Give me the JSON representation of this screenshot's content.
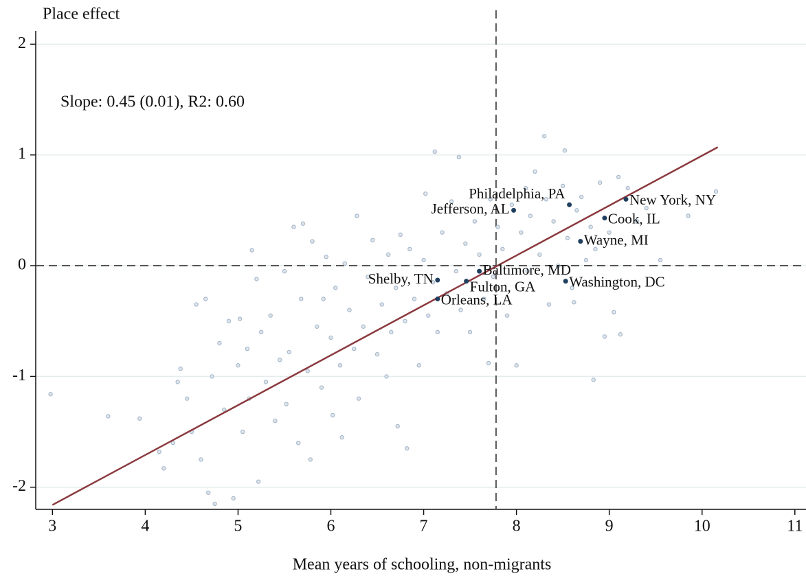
{
  "chart_data": {
    "type": "scatter",
    "y_label": "Place effect",
    "x_label": "Mean years of schooling, non-migrants",
    "annotation": "Slope: 0.45 (0.01), R2: 0.60",
    "xlim": [
      2.82,
      11.12
    ],
    "ylim": [
      -2.2,
      2.12
    ],
    "xticks": [
      3,
      4,
      5,
      6,
      7,
      8,
      9,
      10,
      11
    ],
    "yticks": [
      -2,
      -1,
      0,
      1,
      2
    ],
    "grid": true,
    "xline": 7.78,
    "yline": 0,
    "fit_line": {
      "color": "#8b3a3f",
      "x": [
        3,
        10.17
      ],
      "y": [
        -2.16,
        1.07
      ]
    },
    "series": [
      {
        "color": "#a8b8c8",
        "x": [
          2.98,
          3.6,
          3.94,
          4.15,
          4.2,
          4.3,
          4.35,
          4.38,
          4.45,
          4.5,
          4.55,
          4.6,
          4.65,
          4.68,
          4.72,
          4.75,
          4.8,
          4.85,
          4.9,
          4.95,
          5.0,
          5.02,
          5.05,
          5.1,
          5.12,
          5.15,
          5.2,
          5.22,
          5.25,
          5.3,
          5.35,
          5.4,
          5.45,
          5.5,
          5.52,
          5.55,
          5.6,
          5.65,
          5.68,
          5.7,
          5.75,
          5.78,
          5.8,
          5.85,
          5.9,
          5.92,
          5.95,
          6.0,
          6.02,
          6.05,
          6.1,
          6.12,
          6.15,
          6.2,
          6.25,
          6.28,
          6.3,
          6.35,
          6.4,
          6.45,
          6.5,
          6.55,
          6.6,
          6.62,
          6.65,
          6.7,
          6.72,
          6.75,
          6.8,
          6.82,
          6.85,
          6.9,
          6.95,
          7.0,
          7.02,
          7.05,
          7.1,
          7.12,
          7.15,
          7.2,
          7.25,
          7.3,
          7.35,
          7.38,
          7.4,
          7.45,
          7.5,
          7.55,
          7.6,
          7.65,
          7.7,
          7.72,
          7.75,
          7.8,
          7.85,
          7.9,
          7.95,
          8.0,
          8.05,
          8.1,
          8.12,
          8.15,
          8.2,
          8.25,
          8.3,
          8.32,
          8.35,
          8.4,
          8.45,
          8.5,
          8.52,
          8.55,
          8.6,
          8.62,
          8.65,
          8.7,
          8.75,
          8.8,
          8.83,
          8.85,
          8.9,
          8.95,
          9.0,
          9.05,
          9.1,
          9.12,
          9.2,
          9.3,
          9.4,
          9.55,
          10.15,
          9.85
        ],
        "values": [
          -1.16,
          -1.36,
          -1.38,
          -1.68,
          -1.83,
          -1.6,
          -1.05,
          -0.93,
          -1.2,
          -1.5,
          -0.35,
          -1.75,
          -0.3,
          -2.05,
          -1.0,
          -2.15,
          -0.7,
          -1.3,
          -0.5,
          -2.1,
          -0.9,
          -0.48,
          -1.5,
          -0.75,
          -1.2,
          0.14,
          -0.12,
          -1.95,
          -0.6,
          -1.05,
          -0.45,
          -1.4,
          -0.85,
          -0.05,
          -1.25,
          -0.78,
          0.35,
          -1.6,
          -0.3,
          0.38,
          -0.95,
          -1.75,
          0.22,
          -0.55,
          -1.1,
          -0.3,
          0.08,
          -0.65,
          -1.35,
          -0.2,
          -0.9,
          -1.55,
          0.02,
          -0.4,
          -0.75,
          0.45,
          -1.2,
          -0.55,
          -0.1,
          0.23,
          -0.8,
          -0.35,
          -1.0,
          0.1,
          -0.6,
          -0.2,
          -1.45,
          0.28,
          -0.5,
          -1.65,
          0.15,
          -0.3,
          -0.9,
          0.05,
          0.65,
          -0.45,
          -0.15,
          1.03,
          -0.6,
          0.3,
          -0.25,
          0.58,
          -0.05,
          0.98,
          -0.4,
          0.2,
          -0.6,
          0.4,
          0.1,
          -0.3,
          -0.88,
          0.6,
          -0.1,
          0.35,
          0.15,
          -0.45,
          0.55,
          -0.9,
          0.3,
          0.7,
          -0.05,
          0.45,
          0.85,
          0.1,
          1.17,
          0.6,
          -0.35,
          0.4,
          0.0,
          0.72,
          1.04,
          0.25,
          -0.2,
          -0.33,
          0.5,
          0.62,
          0.05,
          0.35,
          -1.03,
          0.15,
          0.75,
          -0.64,
          0.3,
          -0.42,
          0.8,
          -0.62,
          0.7,
          0.4,
          0.52,
          0.05,
          0.67,
          0.45
        ]
      },
      {
        "color": "#1f3f5f",
        "labels": [
          "Philadelphia, PA",
          "Jefferson, AL",
          "New York, NY",
          "Cook, IL",
          "Wayne, MI",
          "Baltimore, MD",
          "Washington, DC",
          "Shelby, TN",
          "Fulton, GA",
          "Orleans, LA"
        ],
        "x": [
          8.57,
          7.97,
          9.18,
          8.95,
          8.69,
          7.6,
          8.53,
          7.15,
          7.46,
          7.15
        ],
        "values": [
          0.55,
          0.5,
          0.6,
          0.43,
          0.22,
          -0.05,
          -0.14,
          -0.13,
          -0.14,
          -0.3
        ]
      }
    ]
  }
}
